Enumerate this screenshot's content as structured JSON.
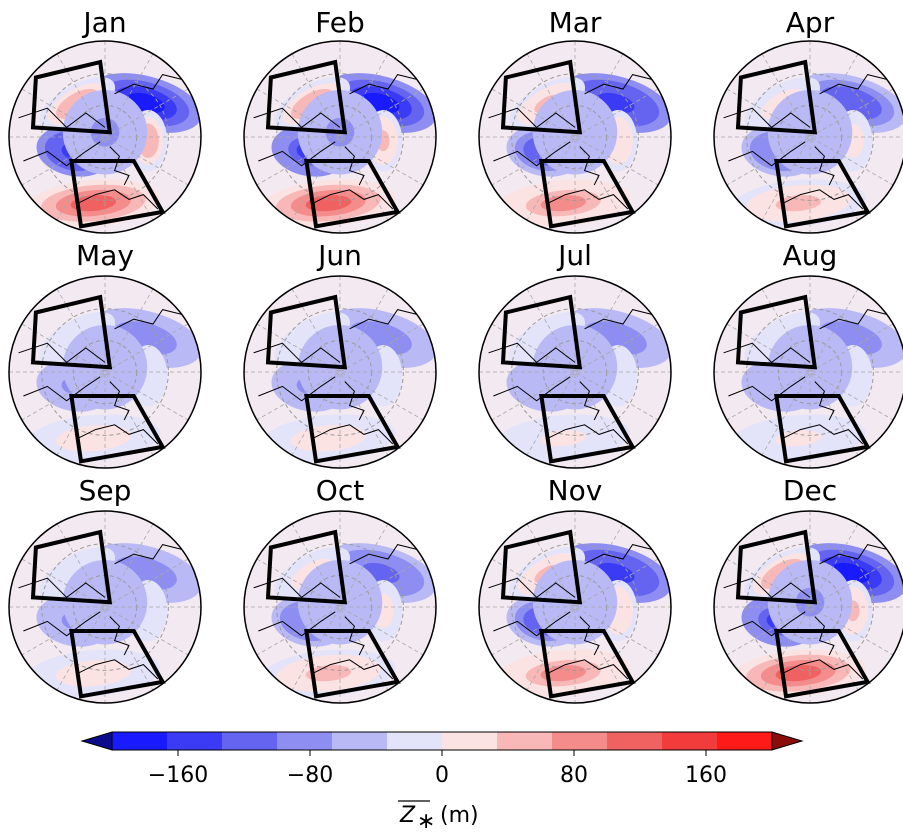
{
  "chart_data": {
    "type": "heatmap",
    "description_kind": "polar stereographic maps of stationary-wave geopotential height anomaly, one per month",
    "panels": [
      {
        "month": "Jan",
        "intensity": 1.0
      },
      {
        "month": "Feb",
        "intensity": 0.95
      },
      {
        "month": "Mar",
        "intensity": 0.75
      },
      {
        "month": "Apr",
        "intensity": 0.55
      },
      {
        "month": "May",
        "intensity": 0.35
      },
      {
        "month": "Jun",
        "intensity": 0.3
      },
      {
        "month": "Jul",
        "intensity": 0.28
      },
      {
        "month": "Aug",
        "intensity": 0.28
      },
      {
        "month": "Sep",
        "intensity": 0.35
      },
      {
        "month": "Oct",
        "intensity": 0.5
      },
      {
        "month": "Nov",
        "intensity": 0.75
      },
      {
        "month": "Dec",
        "intensity": 0.95
      }
    ],
    "colorbar": {
      "min": -200,
      "max": 200,
      "step": 40,
      "ticks": [
        -160,
        -80,
        0,
        80,
        160
      ],
      "tick_labels": [
        "−160",
        "−80",
        "0",
        "80",
        "160"
      ],
      "extend": "both",
      "label_symbol": "Z",
      "label_subscript": "∗",
      "label_unit": "(m)",
      "colors": [
        "#1a1aff",
        "#3b3bf5",
        "#6464f0",
        "#8e8ef2",
        "#b9b9f6",
        "#e3e3fa",
        "#fbe3e3",
        "#f8b8b8",
        "#f48c8c",
        "#f06262",
        "#f23b3b",
        "#ff1a1a"
      ],
      "extend_low_color": "#0b0b8c",
      "extend_high_color": "#8c0b0b"
    }
  }
}
